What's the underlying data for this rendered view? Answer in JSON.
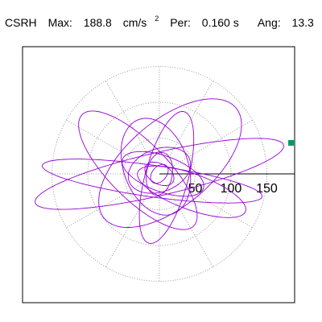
{
  "header": {
    "station": "CSRH",
    "max_label": "Max:",
    "max_value": "188.8",
    "max_unit": "cm/s",
    "max_unit_exp": "2",
    "per_label": "Per:",
    "per_value": "0.160 s",
    "ang_label": "Ang:",
    "ang_value": "13.3"
  },
  "chart_data": {
    "type": "polar-orbit",
    "radial_ticks": [
      50,
      100,
      150
    ],
    "rmax": 188.8,
    "rings": [
      50,
      100,
      150
    ],
    "spoke_step_deg": 30,
    "grid": true,
    "trace_color": "#9400D3",
    "marker_color": "#009966",
    "peak_point": {
      "x": 183.8,
      "y": 43.3,
      "r": 188.8,
      "angle_deg": 13.3
    },
    "orbit_components": [
      {
        "a": 178,
        "b": 30,
        "tilt_deg": 13,
        "dx": 0,
        "dy": 0
      },
      {
        "a": 155,
        "b": 22,
        "tilt_deg": -8,
        "dx": -10,
        "dy": -10
      },
      {
        "a": 120,
        "b": 60,
        "tilt_deg": 40,
        "dx": 15,
        "dy": 15
      },
      {
        "a": 110,
        "b": 40,
        "tilt_deg": -45,
        "dx": -30,
        "dy": 5
      },
      {
        "a": 95,
        "b": 30,
        "tilt_deg": 75,
        "dx": 10,
        "dy": -5
      },
      {
        "a": 80,
        "b": 25,
        "tilt_deg": -20,
        "dx": 45,
        "dy": -25
      },
      {
        "a": 70,
        "b": 45,
        "tilt_deg": 110,
        "dx": -5,
        "dy": 10
      },
      {
        "a": 60,
        "b": 25,
        "tilt_deg": 160,
        "dx": 5,
        "dy": 0
      },
      {
        "a": 45,
        "b": 30,
        "tilt_deg": 20,
        "dx": 0,
        "dy": 5
      },
      {
        "a": 30,
        "b": 18,
        "tilt_deg": 80,
        "dx": 0,
        "dy": 0
      },
      {
        "a": 22,
        "b": 14,
        "tilt_deg": -30,
        "dx": 0,
        "dy": 0
      },
      {
        "a": 15,
        "b": 10,
        "tilt_deg": 50,
        "dx": 0,
        "dy": 0
      }
    ]
  }
}
